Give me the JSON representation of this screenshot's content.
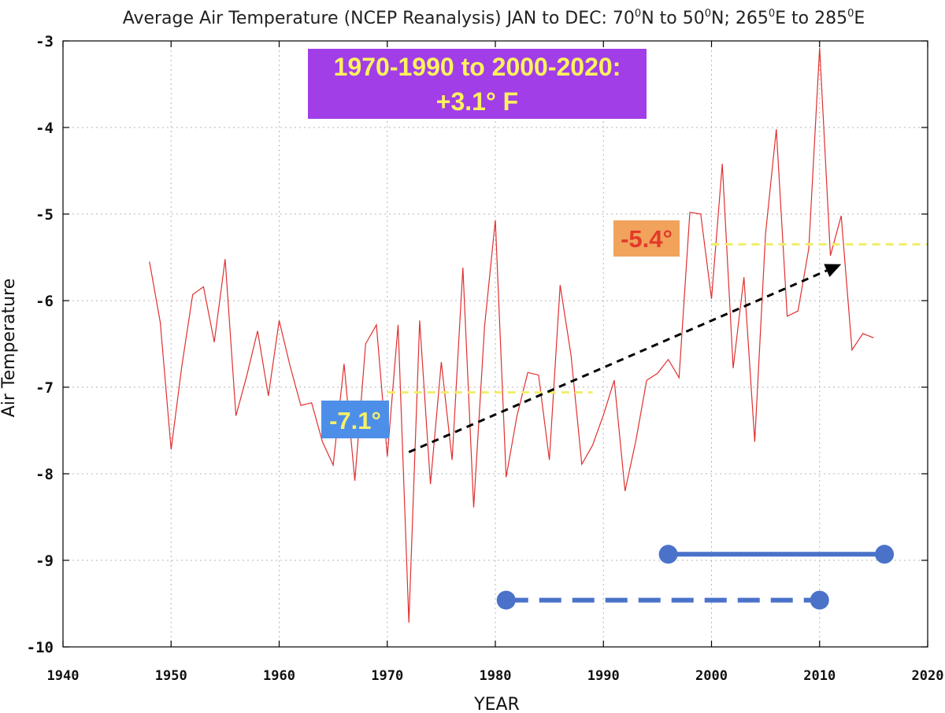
{
  "chart_data": {
    "type": "line",
    "title": "Average Air Temperature (NCEP Reanalysis) JAN to DEC: 70⁰N to 50⁰N; 265⁰E to 285⁰E",
    "title_parts": {
      "prefix": "Average Air Temperature (NCEP Reanalysis) JAN to DEC: 70",
      "sup1": "0",
      "part2": "N to 50",
      "sup2": "0",
      "part3": "N; 265",
      "sup3": "0",
      "part4": "E to 285",
      "sup4": "0",
      "suffix": "E"
    },
    "xlabel": "YEAR",
    "ylabel": "Air Temperature",
    "xlim": [
      1940,
      2020
    ],
    "ylim": [
      -10,
      -3
    ],
    "x_ticks": [
      "1940",
      "1950",
      "1960",
      "1970",
      "1980",
      "1990",
      "2000",
      "2010",
      "2020"
    ],
    "y_ticks": [
      "-3",
      "-4",
      "-5",
      "-6",
      "-7",
      "-8",
      "-9",
      "-10"
    ],
    "grid": true,
    "series": [
      {
        "name": "Average Air Temperature",
        "color": "#e03030",
        "x": [
          1948,
          1949,
          1950,
          1951,
          1952,
          1953,
          1954,
          1955,
          1956,
          1957,
          1958,
          1959,
          1960,
          1961,
          1962,
          1963,
          1964,
          1965,
          1966,
          1967,
          1968,
          1969,
          1970,
          1971,
          1972,
          1973,
          1974,
          1975,
          1976,
          1977,
          1978,
          1979,
          1980,
          1981,
          1982,
          1983,
          1984,
          1985,
          1986,
          1987,
          1988,
          1989,
          1990,
          1991,
          1992,
          1993,
          1994,
          1995,
          1996,
          1997,
          1998,
          1999,
          2000,
          2001,
          2002,
          2003,
          2004,
          2005,
          2006,
          2007,
          2008,
          2009,
          2010,
          2011,
          2012,
          2013,
          2014,
          2015
        ],
        "values": [
          -5.55,
          -6.25,
          -7.72,
          -6.75,
          -5.93,
          -5.84,
          -6.48,
          -5.52,
          -7.33,
          -6.87,
          -6.35,
          -7.1,
          -6.23,
          -6.75,
          -7.21,
          -7.18,
          -7.63,
          -7.9,
          -6.73,
          -8.08,
          -6.5,
          -6.28,
          -7.8,
          -6.28,
          -9.72,
          -6.23,
          -8.12,
          -6.71,
          -7.84,
          -5.62,
          -8.39,
          -6.3,
          -5.07,
          -8.04,
          -7.33,
          -6.83,
          -6.86,
          -7.84,
          -5.82,
          -6.63,
          -7.89,
          -7.67,
          -7.32,
          -6.92,
          -8.2,
          -7.62,
          -6.92,
          -6.84,
          -6.68,
          -6.89,
          -4.98,
          -5.0,
          -5.98,
          -4.42,
          -6.78,
          -5.73,
          -7.63,
          -5.23,
          -4.02,
          -6.18,
          -6.12,
          -5.4,
          -3.08,
          -5.48,
          -5.02,
          -6.57,
          -6.38,
          -6.43
        ]
      }
    ],
    "trend_arrow": {
      "from": [
        1972,
        -7.75
      ],
      "to": [
        2012,
        -5.58
      ]
    },
    "period_averages": [
      {
        "label": "-7.1°",
        "value": -7.06,
        "x_range": [
          1970,
          1989
        ]
      },
      {
        "label": "-5.4°",
        "value": -5.35,
        "x_range": [
          2000,
          2020
        ]
      }
    ],
    "period_markers": [
      {
        "style": "solid",
        "x_range": [
          1996,
          2016
        ],
        "y": -8.93
      },
      {
        "style": "dashed",
        "x_range": [
          1981,
          2010
        ],
        "y": -9.46
      }
    ],
    "annotation": {
      "line1": "1970-1990 to 2000-2020:",
      "line2": "+3.1° F"
    }
  }
}
